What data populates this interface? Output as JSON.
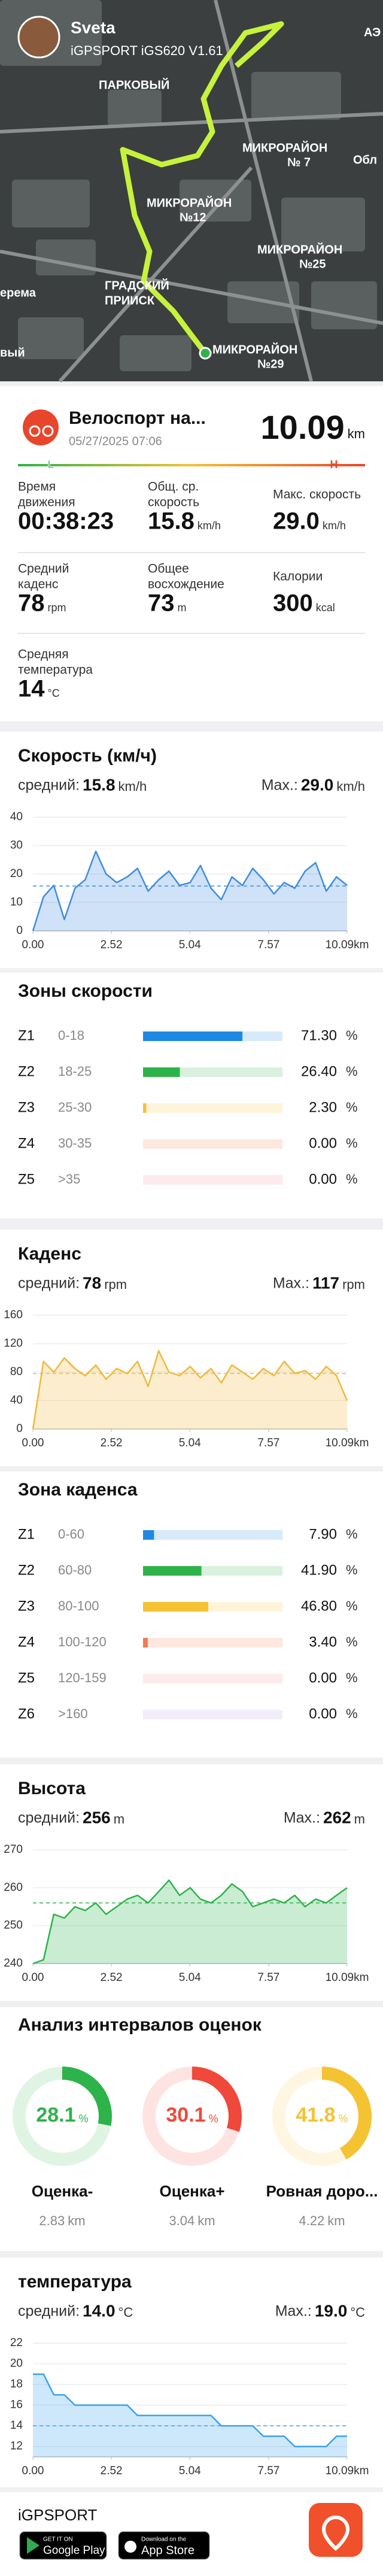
{
  "header": {
    "user": "Sveta",
    "device": "iGPSPORT iGS620 V1.61",
    "map_labels": [
      "ПАРКОВЫЙ",
      "МИКРОРАЙОН",
      "№ 7",
      "Обл",
      "МИКРОРАЙОН",
      "№12",
      "МИКРОРАЙОН",
      "№25",
      "ГРАДСКИЙ",
      "ПРИИСК",
      "МИКРОРАЙОН",
      "№29",
      "АЭ",
      "ерема",
      "вый"
    ]
  },
  "activity": {
    "title": "Велоспорт на...",
    "date": "05/27/2025 07:06",
    "distance": 10.09,
    "distance_unit": "km",
    "scale_low": "L",
    "scale_high": "H"
  },
  "stats": [
    {
      "label": [
        "Время",
        "движения"
      ],
      "value": "00:38:23"
    },
    {
      "label": [
        "Общ. ср.",
        "скорость"
      ],
      "value": 15.8,
      "unit": "km/h"
    },
    {
      "label": [
        "Макс. скорость"
      ],
      "value": 29,
      "value_label": "29.0",
      "unit": "km/h"
    },
    {
      "label": [
        "Средний",
        "каденс"
      ],
      "value": 78,
      "unit": "rpm"
    },
    {
      "label": [
        "Общее",
        "восхождение"
      ],
      "value": 73,
      "unit": "m"
    },
    {
      "label": [
        "Калории"
      ],
      "value": 300,
      "unit": "kcal"
    },
    {
      "label": [
        "Средняя",
        "температура"
      ],
      "value": 14,
      "unit": "°C"
    }
  ],
  "chart_data": [
    {
      "type": "line",
      "title": "Скорость (км/ч)",
      "average": {
        "label": "средний:",
        "value": 15.8,
        "unit": "km/h"
      },
      "max": {
        "label": "Max.:",
        "value": 29,
        "value_label": "29.0",
        "unit": "km/h"
      },
      "x": [
        0,
        0.34,
        0.67,
        1.01,
        1.35,
        1.68,
        2.02,
        2.35,
        2.69,
        3.03,
        3.36,
        3.7,
        4.04,
        4.37,
        4.71,
        5.05,
        5.38,
        5.72,
        6.05,
        6.39,
        6.73,
        7.06,
        7.4,
        7.74,
        8.07,
        8.41,
        8.74,
        9.08,
        9.42,
        9.75,
        10.09
      ],
      "values": [
        0,
        12,
        16,
        4,
        15,
        18,
        28,
        20,
        17,
        19,
        22,
        14,
        18,
        21,
        16,
        17,
        23,
        15,
        11,
        19,
        16,
        22,
        18,
        13,
        17,
        15,
        21,
        24,
        14,
        19,
        16
      ],
      "color": "#3f8de0",
      "xlim": [
        0,
        10.09
      ],
      "ylim": [
        0,
        40
      ],
      "xticks": [
        {
          "value": 0,
          "label": "0.00"
        },
        2.52,
        5.04,
        7.57,
        {
          "value": 10.09,
          "label": "10.09km"
        }
      ],
      "yticks": [
        0,
        10,
        20,
        30,
        40
      ],
      "grid": true
    },
    {
      "type": "line",
      "title": "Каденс",
      "average": {
        "label": "средний:",
        "value": 78,
        "unit": "rpm"
      },
      "max": {
        "label": "Max.:",
        "value": 117,
        "unit": "rpm"
      },
      "x": [
        0,
        0.34,
        0.67,
        1.01,
        1.35,
        1.68,
        2.02,
        2.35,
        2.69,
        3.03,
        3.36,
        3.7,
        4.04,
        4.37,
        4.71,
        5.05,
        5.38,
        5.72,
        6.05,
        6.39,
        6.73,
        7.06,
        7.4,
        7.74,
        8.07,
        8.41,
        8.74,
        9.08,
        9.42,
        9.75,
        10.09
      ],
      "values": [
        0,
        95,
        80,
        100,
        85,
        75,
        90,
        70,
        85,
        78,
        95,
        60,
        110,
        80,
        75,
        88,
        72,
        85,
        65,
        90,
        80,
        70,
        85,
        75,
        95,
        78,
        82,
        70,
        88,
        75,
        40
      ],
      "color": "#f0b93a",
      "xlim": [
        0,
        10.09
      ],
      "ylim": [
        0,
        160
      ],
      "xticks": [
        {
          "value": 0,
          "label": "0.00"
        },
        2.52,
        5.04,
        7.57,
        {
          "value": 10.09,
          "label": "10.09km"
        }
      ],
      "yticks": [
        0,
        40,
        80,
        120,
        160
      ],
      "grid": true
    },
    {
      "type": "line",
      "title": "Высота",
      "average": {
        "label": "средний:",
        "value": 256,
        "unit": "m"
      },
      "max": {
        "label": "Max.:",
        "value": 262,
        "unit": "m"
      },
      "x": [
        0,
        0.34,
        0.67,
        1.01,
        1.35,
        1.68,
        2.02,
        2.35,
        2.69,
        3.03,
        3.36,
        3.7,
        4.04,
        4.37,
        4.71,
        5.05,
        5.38,
        5.72,
        6.05,
        6.39,
        6.73,
        7.06,
        7.4,
        7.74,
        8.07,
        8.41,
        8.74,
        9.08,
        9.42,
        9.75,
        10.09
      ],
      "values": [
        240,
        241,
        253,
        252,
        255,
        254,
        256,
        253,
        255,
        257,
        258,
        256,
        259,
        262,
        258,
        260,
        257,
        256,
        258,
        261,
        259,
        255,
        256,
        257,
        256,
        258,
        255,
        257,
        256,
        258,
        260
      ],
      "color": "#2db34a",
      "xlim": [
        0,
        10.09
      ],
      "ylim": [
        240,
        270
      ],
      "xticks": [
        {
          "value": 0,
          "label": "0.00"
        },
        2.52,
        5.04,
        7.57,
        {
          "value": 10.09,
          "label": "10.09km"
        }
      ],
      "yticks": [
        240,
        250,
        260,
        270
      ],
      "grid": true
    },
    {
      "type": "line",
      "title": "температура",
      "average": {
        "label": "средний:",
        "value": 14,
        "value_label": "14.0",
        "unit": "°C"
      },
      "max": {
        "label": "Max.:",
        "value": 19,
        "value_label": "19.0",
        "unit": "°C"
      },
      "x": [
        0,
        0.34,
        0.67,
        1.01,
        1.35,
        1.68,
        2.02,
        2.35,
        2.69,
        3.03,
        3.36,
        3.7,
        4.04,
        4.37,
        4.71,
        5.05,
        5.38,
        5.72,
        6.05,
        6.39,
        6.73,
        7.06,
        7.4,
        7.74,
        8.07,
        8.41,
        8.74,
        9.08,
        9.42,
        9.75,
        10.09
      ],
      "values": [
        19,
        19,
        17,
        17,
        16,
        16,
        16,
        16,
        16,
        16,
        15,
        15,
        15,
        15,
        15,
        15,
        15,
        15,
        14,
        14,
        14,
        14,
        13,
        13,
        13,
        12,
        12,
        12,
        12,
        13,
        13
      ],
      "color": "#3aa2f0",
      "xlim": [
        0,
        10.09
      ],
      "ylim": [
        11,
        22
      ],
      "xticks": [
        {
          "value": 0,
          "label": "0.00"
        },
        2.52,
        5.04,
        7.57,
        {
          "value": 10.09,
          "label": "10.09km"
        }
      ],
      "yticks": [
        12,
        14,
        16,
        18,
        20,
        22
      ],
      "grid": true
    }
  ],
  "speed_zones": {
    "title": "Зоны скорости",
    "unit": "%",
    "zones": [
      {
        "name": "Z1",
        "range": "0-18",
        "value": 71.3,
        "value_label": "71.30",
        "color": "#1e88e5"
      },
      {
        "name": "Z2",
        "range": "18-25",
        "value": 26.4,
        "value_label": "26.40",
        "color": "#2db34a"
      },
      {
        "name": "Z3",
        "range": "25-30",
        "value": 2.3,
        "value_label": "2.30",
        "color": "#f5c232"
      },
      {
        "name": "Z4",
        "range": "30-35",
        "value": 0,
        "value_label": "0.00",
        "color": "#f4794f"
      },
      {
        "name": "Z5",
        "range": ">35",
        "value": 0,
        "value_label": "0.00",
        "color": "#f28b9b"
      }
    ]
  },
  "cadence_zones": {
    "title": "Зона каденса",
    "unit": "%",
    "zones": [
      {
        "name": "Z1",
        "range": "0-60",
        "value": 7.9,
        "value_label": "7.90",
        "color": "#1e88e5"
      },
      {
        "name": "Z2",
        "range": "60-80",
        "value": 41.9,
        "value_label": "41.90",
        "color": "#2db34a"
      },
      {
        "name": "Z3",
        "range": "80-100",
        "value": 46.8,
        "value_label": "46.80",
        "color": "#f5c232"
      },
      {
        "name": "Z4",
        "range": "100-120",
        "value": 3.4,
        "value_label": "3.40",
        "color": "#f4794f"
      },
      {
        "name": "Z5",
        "range": "120-159",
        "value": 0,
        "value_label": "0.00",
        "color": "#f28b9b"
      },
      {
        "name": "Z6",
        "range": ">160",
        "value": 0,
        "value_label": "0.00",
        "color": "#b39ddb"
      }
    ]
  },
  "intervals": {
    "title": "Анализ интервалов оценок",
    "items": [
      {
        "value": 28.1,
        "unit": "%",
        "label": "Оценка-",
        "distance": 2.83,
        "distance_unit": "km",
        "color": "#2db34a"
      },
      {
        "value": 30.1,
        "unit": "%",
        "label": "Оценка+",
        "distance": 3.04,
        "distance_unit": "km",
        "color": "#f0483a"
      },
      {
        "value": 41.8,
        "unit": "%",
        "label": "Ровная доро...",
        "distance": 4.22,
        "distance_unit": "km",
        "color": "#f5c232"
      }
    ]
  },
  "footer": {
    "brand": "iGPSPORT",
    "google_play": [
      "GET IT ON",
      "Google Play"
    ],
    "app_store": [
      "Download on the",
      "App Store"
    ]
  }
}
